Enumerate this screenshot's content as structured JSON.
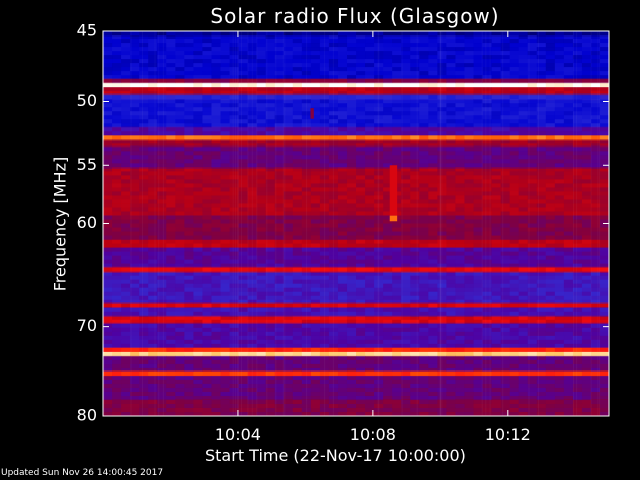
{
  "chart_data": {
    "type": "heatmap",
    "title": "Solar radio Flux (Glasgow)",
    "xlabel": "Start Time (22-Nov-17 10:00:00)",
    "ylabel": "Frequency [MHz]",
    "x_unit": "minutes after 10:00:00",
    "xlim": [
      0,
      15
    ],
    "ylim": [
      45,
      80
    ],
    "y_scale": "log",
    "y_direction": "increasing downward",
    "grid": false,
    "legend": "none",
    "xticks": [
      {
        "value": 4,
        "label": "10:04"
      },
      {
        "value": 8,
        "label": "10:08"
      },
      {
        "value": 12,
        "label": "10:12"
      }
    ],
    "yticks": [
      {
        "value": 45,
        "label": "45"
      },
      {
        "value": 50,
        "label": "50"
      },
      {
        "value": 55,
        "label": "55"
      },
      {
        "value": 60,
        "label": "60"
      },
      {
        "value": 70,
        "label": "70"
      },
      {
        "value": 80,
        "label": "80"
      }
    ],
    "intensity_scale": "0 (dark blue) to 1 (white)",
    "bands": [
      {
        "fmin": 45.0,
        "fmax": 45.4,
        "level": 0.05
      },
      {
        "fmin": 45.4,
        "fmax": 48.3,
        "level": 0.12
      },
      {
        "fmin": 48.3,
        "fmax": 48.6,
        "level": 0.45
      },
      {
        "fmin": 48.6,
        "fmax": 48.95,
        "level": 1.0
      },
      {
        "fmin": 48.95,
        "fmax": 49.4,
        "level": 0.55
      },
      {
        "fmin": 49.4,
        "fmax": 49.9,
        "level": 0.2
      },
      {
        "fmin": 49.9,
        "fmax": 51.9,
        "level": 0.15
      },
      {
        "fmin": 51.9,
        "fmax": 52.6,
        "level": 0.32
      },
      {
        "fmin": 52.6,
        "fmax": 53.0,
        "level": 0.8
      },
      {
        "fmin": 53.0,
        "fmax": 53.4,
        "level": 0.5
      },
      {
        "fmin": 53.4,
        "fmax": 55.3,
        "level": 0.38
      },
      {
        "fmin": 55.3,
        "fmax": 59.3,
        "level": 0.52
      },
      {
        "fmin": 59.3,
        "fmax": 61.5,
        "level": 0.44
      },
      {
        "fmin": 61.5,
        "fmax": 62.2,
        "level": 0.55
      },
      {
        "fmin": 62.2,
        "fmax": 64.0,
        "level": 0.34
      },
      {
        "fmin": 64.0,
        "fmax": 64.6,
        "level": 0.62
      },
      {
        "fmin": 64.6,
        "fmax": 67.5,
        "level": 0.28
      },
      {
        "fmin": 67.5,
        "fmax": 68.0,
        "level": 0.6
      },
      {
        "fmin": 68.0,
        "fmax": 69.0,
        "level": 0.3
      },
      {
        "fmin": 69.0,
        "fmax": 69.6,
        "level": 0.6
      },
      {
        "fmin": 69.6,
        "fmax": 72.2,
        "level": 0.32
      },
      {
        "fmin": 72.2,
        "fmax": 72.7,
        "level": 0.7
      },
      {
        "fmin": 72.7,
        "fmax": 73.2,
        "level": 0.92
      },
      {
        "fmin": 73.2,
        "fmax": 74.7,
        "level": 0.38
      },
      {
        "fmin": 74.7,
        "fmax": 75.4,
        "level": 0.72
      },
      {
        "fmin": 75.4,
        "fmax": 78.0,
        "level": 0.38
      },
      {
        "fmin": 78.0,
        "fmax": 80.0,
        "level": 0.44
      }
    ],
    "features": [
      {
        "x_start": 8.5,
        "x_end": 8.72,
        "fmin": 55.0,
        "fmax": 59.3,
        "level": 0.6
      },
      {
        "x_start": 8.5,
        "x_end": 8.72,
        "fmin": 59.3,
        "fmax": 59.8,
        "level": 0.8
      },
      {
        "x_start": 6.15,
        "x_end": 6.25,
        "fmin": 50.5,
        "fmax": 51.3,
        "level": 0.45
      }
    ]
  },
  "footer": {
    "updated": "Updated Sun Nov 26 14:00:45 2017"
  },
  "colors": {
    "background": "#000000",
    "text": "#ffffff",
    "colormap": [
      "#000060",
      "#0000d0",
      "#3030d8",
      "#5000a0",
      "#800040",
      "#c00010",
      "#ff1010",
      "#ff5a00",
      "#ffc050",
      "#ffffff"
    ]
  }
}
